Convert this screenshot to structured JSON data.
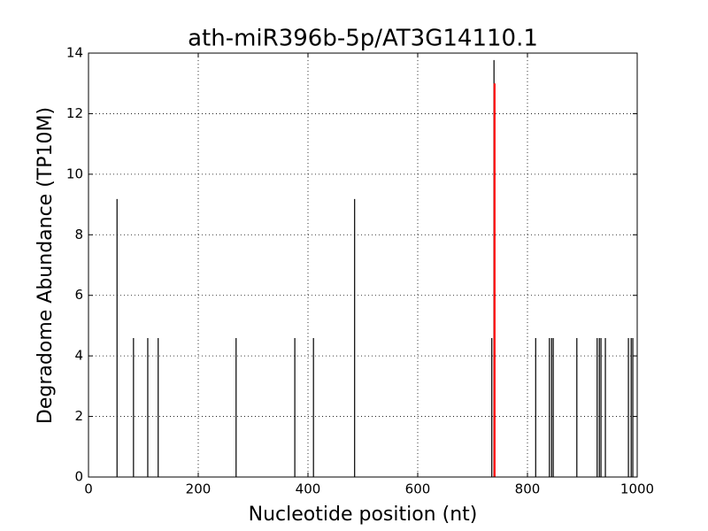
{
  "chart_data": {
    "type": "vlines",
    "title": "ath-miR396b-5p/AT3G14110.1",
    "x_label": "Nucleotide position (nt)",
    "y_label": "Degradome Abundance (TP10M)",
    "series": [
      {
        "color": "#000000",
        "x": [
          52,
          82,
          108,
          127,
          269,
          376,
          410,
          485,
          735,
          739,
          815,
          840,
          844,
          847,
          890,
          927,
          931,
          934,
          942,
          984,
          989,
          992
        ],
        "values": [
          9.18,
          4.59,
          4.59,
          4.59,
          4.59,
          4.59,
          4.59,
          9.18,
          4.59,
          13.77,
          4.59,
          4.59,
          4.59,
          4.59,
          4.59,
          4.59,
          4.59,
          4.59,
          4.59,
          4.59,
          4.59,
          4.59
        ]
      },
      {
        "color": "#ff0000",
        "x": [
          740
        ],
        "values": [
          13.0
        ]
      }
    ],
    "xlim": [
      0,
      1000
    ],
    "xticks": [
      0,
      200,
      400,
      600,
      800,
      1000
    ],
    "ylim": [
      0,
      14
    ],
    "yticks": [
      0,
      2,
      4,
      6,
      8,
      10,
      12,
      14
    ],
    "grid": true
  }
}
